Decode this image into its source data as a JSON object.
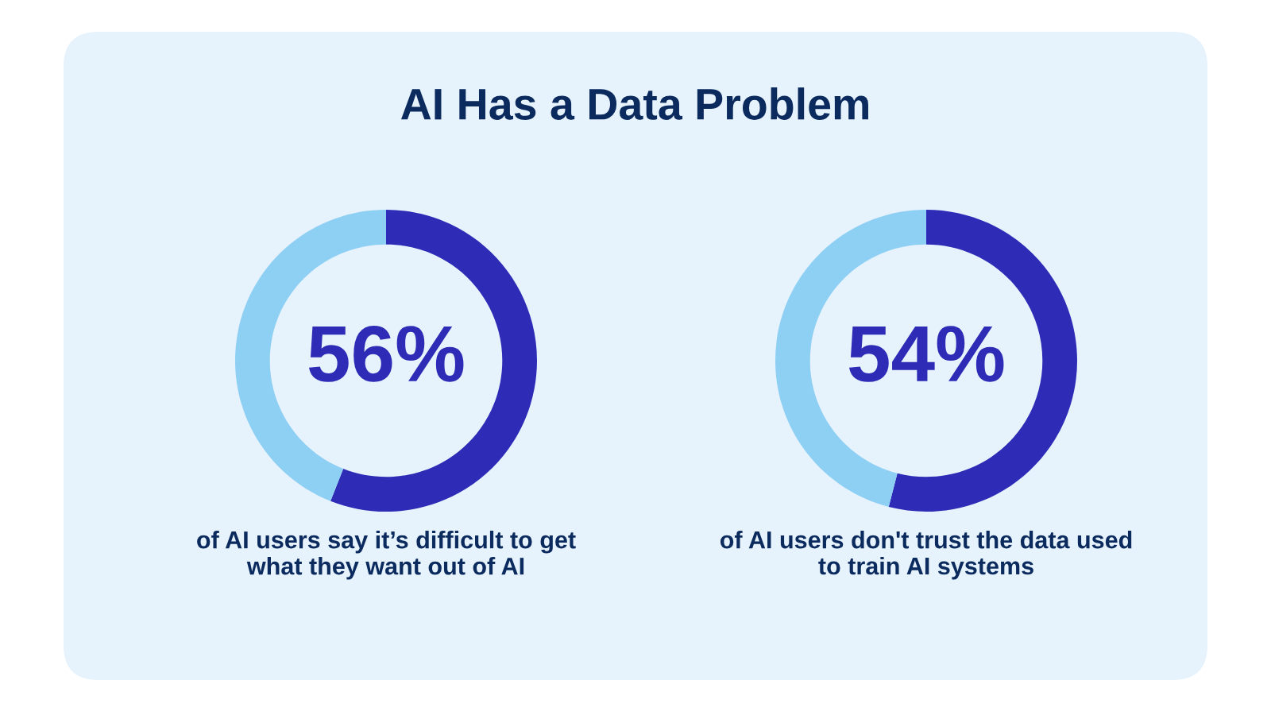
{
  "chart_data": [
    {
      "type": "donut",
      "title": "AI Has a Data Problem",
      "categories": [
        null,
        null
      ],
      "values": [
        56,
        44
      ],
      "colors": [
        "#2e2cb6",
        "#8ecff4"
      ],
      "value_labels": [
        "56%",
        null
      ],
      "annotations": [
        "of AI users say it’s difficult to get what they want out of AI"
      ]
    },
    {
      "type": "donut",
      "categories": [
        null,
        null
      ],
      "values": [
        54,
        46
      ],
      "colors": [
        "#2e2cb6",
        "#8ecff4"
      ],
      "value_labels": [
        "54%",
        null
      ],
      "annotations": [
        "of AI users don't trust the data used to train AI systems"
      ]
    }
  ]
}
